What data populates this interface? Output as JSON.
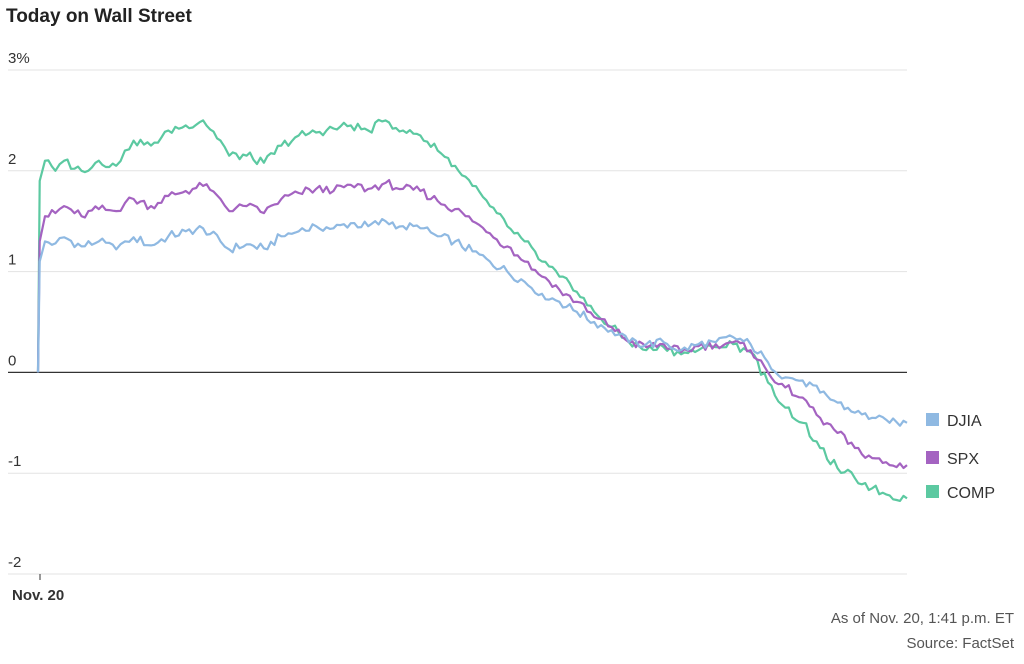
{
  "chart_data": {
    "type": "line",
    "title": "Today on Wall Street",
    "x_tick_labels": [
      "Nov. 20"
    ],
    "y_ticks": [
      {
        "value": 3,
        "label": "3%"
      },
      {
        "value": 2,
        "label": "2"
      },
      {
        "value": 1,
        "label": "1"
      },
      {
        "value": 0,
        "label": "0"
      },
      {
        "value": -1,
        "label": "-1"
      },
      {
        "value": -2,
        "label": "-2"
      }
    ],
    "ylim": [
      -2,
      3
    ],
    "grid": true,
    "legend_position": "right",
    "x_unit": "fraction of session elapsed",
    "series": [
      {
        "name": "DJIA",
        "color": "#8fb9e2",
        "points": [
          [
            0,
            0
          ],
          [
            0.002,
            1.1
          ],
          [
            0.008,
            1.3
          ],
          [
            0.02,
            1.28
          ],
          [
            0.03,
            1.34
          ],
          [
            0.05,
            1.25
          ],
          [
            0.07,
            1.3
          ],
          [
            0.09,
            1.22
          ],
          [
            0.1,
            1.3
          ],
          [
            0.11,
            1.34
          ],
          [
            0.13,
            1.26
          ],
          [
            0.15,
            1.35
          ],
          [
            0.17,
            1.4
          ],
          [
            0.19,
            1.43
          ],
          [
            0.21,
            1.3
          ],
          [
            0.22,
            1.22
          ],
          [
            0.24,
            1.27
          ],
          [
            0.26,
            1.23
          ],
          [
            0.28,
            1.35
          ],
          [
            0.3,
            1.4
          ],
          [
            0.32,
            1.45
          ],
          [
            0.34,
            1.43
          ],
          [
            0.36,
            1.48
          ],
          [
            0.38,
            1.45
          ],
          [
            0.4,
            1.5
          ],
          [
            0.42,
            1.45
          ],
          [
            0.44,
            1.43
          ],
          [
            0.46,
            1.35
          ],
          [
            0.48,
            1.3
          ],
          [
            0.5,
            1.2
          ],
          [
            0.52,
            1.1
          ],
          [
            0.54,
            1.0
          ],
          [
            0.56,
            0.9
          ],
          [
            0.58,
            0.78
          ],
          [
            0.6,
            0.7
          ],
          [
            0.62,
            0.6
          ],
          [
            0.64,
            0.5
          ],
          [
            0.66,
            0.42
          ],
          [
            0.68,
            0.3
          ],
          [
            0.7,
            0.28
          ],
          [
            0.72,
            0.3
          ],
          [
            0.74,
            0.22
          ],
          [
            0.76,
            0.28
          ],
          [
            0.78,
            0.3
          ],
          [
            0.8,
            0.35
          ],
          [
            0.82,
            0.28
          ],
          [
            0.84,
            0.1
          ],
          [
            0.86,
            -0.05
          ],
          [
            0.88,
            -0.08
          ],
          [
            0.9,
            -0.2
          ],
          [
            0.92,
            -0.3
          ],
          [
            0.94,
            -0.4
          ],
          [
            0.96,
            -0.45
          ],
          [
            0.98,
            -0.5
          ],
          [
            1.0,
            -0.5
          ]
        ]
      },
      {
        "name": "SPX",
        "color": "#a463c1",
        "points": [
          [
            0,
            0
          ],
          [
            0.002,
            1.3
          ],
          [
            0.008,
            1.55
          ],
          [
            0.02,
            1.58
          ],
          [
            0.03,
            1.65
          ],
          [
            0.05,
            1.55
          ],
          [
            0.07,
            1.62
          ],
          [
            0.09,
            1.6
          ],
          [
            0.1,
            1.68
          ],
          [
            0.11,
            1.72
          ],
          [
            0.13,
            1.65
          ],
          [
            0.15,
            1.75
          ],
          [
            0.17,
            1.8
          ],
          [
            0.19,
            1.85
          ],
          [
            0.21,
            1.72
          ],
          [
            0.22,
            1.6
          ],
          [
            0.24,
            1.65
          ],
          [
            0.26,
            1.58
          ],
          [
            0.28,
            1.72
          ],
          [
            0.3,
            1.78
          ],
          [
            0.32,
            1.82
          ],
          [
            0.34,
            1.8
          ],
          [
            0.36,
            1.86
          ],
          [
            0.38,
            1.82
          ],
          [
            0.4,
            1.88
          ],
          [
            0.42,
            1.82
          ],
          [
            0.44,
            1.8
          ],
          [
            0.46,
            1.7
          ],
          [
            0.48,
            1.62
          ],
          [
            0.5,
            1.5
          ],
          [
            0.52,
            1.38
          ],
          [
            0.54,
            1.25
          ],
          [
            0.56,
            1.1
          ],
          [
            0.58,
            0.95
          ],
          [
            0.6,
            0.82
          ],
          [
            0.62,
            0.7
          ],
          [
            0.64,
            0.55
          ],
          [
            0.66,
            0.45
          ],
          [
            0.68,
            0.3
          ],
          [
            0.7,
            0.25
          ],
          [
            0.72,
            0.28
          ],
          [
            0.74,
            0.2
          ],
          [
            0.76,
            0.26
          ],
          [
            0.78,
            0.28
          ],
          [
            0.8,
            0.3
          ],
          [
            0.82,
            0.22
          ],
          [
            0.84,
            0.0
          ],
          [
            0.86,
            -0.15
          ],
          [
            0.88,
            -0.25
          ],
          [
            0.9,
            -0.45
          ],
          [
            0.92,
            -0.6
          ],
          [
            0.94,
            -0.75
          ],
          [
            0.96,
            -0.85
          ],
          [
            0.98,
            -0.92
          ],
          [
            1.0,
            -0.92
          ]
        ]
      },
      {
        "name": "COMP",
        "color": "#5cc9a1",
        "points": [
          [
            0,
            0
          ],
          [
            0.002,
            1.9
          ],
          [
            0.008,
            2.1
          ],
          [
            0.02,
            2.0
          ],
          [
            0.03,
            2.1
          ],
          [
            0.05,
            2.0
          ],
          [
            0.07,
            2.1
          ],
          [
            0.09,
            2.05
          ],
          [
            0.1,
            2.2
          ],
          [
            0.11,
            2.3
          ],
          [
            0.13,
            2.25
          ],
          [
            0.15,
            2.4
          ],
          [
            0.17,
            2.45
          ],
          [
            0.19,
            2.5
          ],
          [
            0.21,
            2.3
          ],
          [
            0.22,
            2.15
          ],
          [
            0.24,
            2.15
          ],
          [
            0.26,
            2.08
          ],
          [
            0.28,
            2.25
          ],
          [
            0.3,
            2.35
          ],
          [
            0.32,
            2.38
          ],
          [
            0.34,
            2.42
          ],
          [
            0.36,
            2.45
          ],
          [
            0.38,
            2.4
          ],
          [
            0.4,
            2.5
          ],
          [
            0.42,
            2.4
          ],
          [
            0.44,
            2.35
          ],
          [
            0.46,
            2.2
          ],
          [
            0.48,
            2.05
          ],
          [
            0.5,
            1.85
          ],
          [
            0.52,
            1.65
          ],
          [
            0.54,
            1.45
          ],
          [
            0.56,
            1.3
          ],
          [
            0.58,
            1.1
          ],
          [
            0.6,
            0.95
          ],
          [
            0.62,
            0.8
          ],
          [
            0.64,
            0.6
          ],
          [
            0.66,
            0.45
          ],
          [
            0.68,
            0.3
          ],
          [
            0.7,
            0.22
          ],
          [
            0.72,
            0.25
          ],
          [
            0.74,
            0.18
          ],
          [
            0.76,
            0.22
          ],
          [
            0.78,
            0.25
          ],
          [
            0.8,
            0.28
          ],
          [
            0.82,
            0.2
          ],
          [
            0.84,
            -0.1
          ],
          [
            0.86,
            -0.35
          ],
          [
            0.88,
            -0.5
          ],
          [
            0.9,
            -0.75
          ],
          [
            0.92,
            -0.95
          ],
          [
            0.94,
            -1.05
          ],
          [
            0.96,
            -1.15
          ],
          [
            0.98,
            -1.22
          ],
          [
            1.0,
            -1.25
          ]
        ]
      }
    ]
  },
  "footer": {
    "note": "As of Nov. 20, 1:41 p.m. ET",
    "source": "Source: FactSet"
  }
}
